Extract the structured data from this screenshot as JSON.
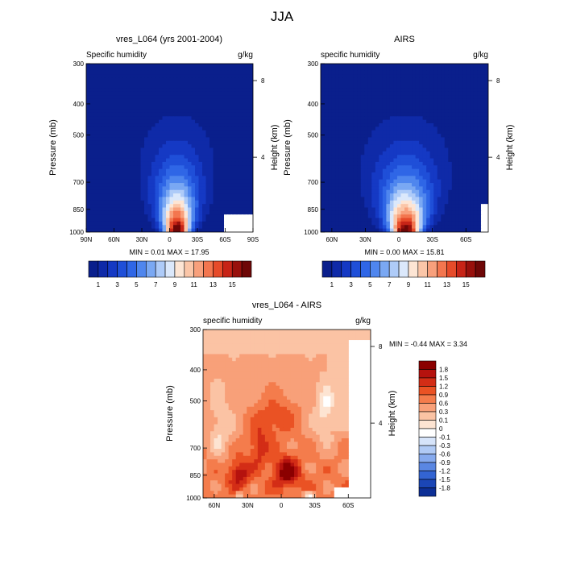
{
  "page_title": "JJA",
  "chart_data": [
    {
      "type": "contour",
      "title": "vres_L064 (yrs 2001-2004)",
      "left_label": "Specific humidity",
      "units": "g/kg",
      "ylabel": "Pressure (mb)",
      "ylabel_right": "Height (km)",
      "x_ticks": [
        "90N",
        "60N",
        "30N",
        "0",
        "30S",
        "60S",
        "90S"
      ],
      "y_ticks": [
        "300",
        "400",
        "500",
        "700",
        "850",
        "1000"
      ],
      "height_ticks": [
        "8",
        "4"
      ],
      "stats": "MIN =  0.01  MAX =  17.95",
      "min": 0.01,
      "max": 17.95,
      "levels": [
        1,
        2,
        3,
        4,
        5,
        6,
        7,
        8,
        9,
        10,
        11,
        12,
        13,
        14,
        15,
        16
      ],
      "colorbar_labels": [
        "1",
        "3",
        "5",
        "7",
        "9",
        "11",
        "13",
        "15"
      ]
    },
    {
      "type": "contour",
      "title": "AIRS",
      "left_label": "specific humidity",
      "units": "g/kg",
      "ylabel": "Pressure (mb)",
      "ylabel_right": "Height (km)",
      "x_ticks": [
        "60N",
        "30N",
        "0",
        "30S",
        "60S"
      ],
      "y_ticks": [
        "300",
        "400",
        "500",
        "700",
        "850",
        "1000"
      ],
      "height_ticks": [
        "8",
        "4"
      ],
      "stats": "MIN =  0.00  MAX =  15.81",
      "min": 0.0,
      "max": 15.81,
      "levels": [
        1,
        2,
        3,
        4,
        5,
        6,
        7,
        8,
        9,
        10,
        11,
        12,
        13,
        14,
        15,
        16
      ],
      "colorbar_labels": [
        "1",
        "3",
        "5",
        "7",
        "9",
        "11",
        "13",
        "15"
      ]
    },
    {
      "type": "contour",
      "title": "vres_L064 - AIRS",
      "left_label": "specific humidity",
      "units": "g/kg",
      "ylabel": "Pressure (mb)",
      "ylabel_right": "Height (km)",
      "x_ticks": [
        "60N",
        "30N",
        "0",
        "30S",
        "60S"
      ],
      "y_ticks": [
        "300",
        "400",
        "500",
        "700",
        "850",
        "1000"
      ],
      "height_ticks": [
        "8",
        "4"
      ],
      "stats": "MIN = -0.44  MAX =   3.34",
      "min": -0.44,
      "max": 3.34,
      "colorbar_labels": [
        "1.8",
        "1.5",
        "1.2",
        "0.9",
        "0.6",
        "0.3",
        "0.1",
        "0",
        "-0.1",
        "-0.3",
        "-0.6",
        "-0.9",
        "-1.2",
        "-1.5",
        "-1.8"
      ]
    }
  ],
  "colors": {
    "seq": [
      "#0a1f8c",
      "#0f2aa8",
      "#1539c4",
      "#1f4fd8",
      "#2f66e6",
      "#4f86ee",
      "#7aa8f3",
      "#aecbf8",
      "#dbe8fb",
      "#fde5d4",
      "#fbc6a8",
      "#f8a07c",
      "#f3764f",
      "#e64b2a",
      "#c72417",
      "#98100c",
      "#6e0707"
    ],
    "diff_pos": [
      "#8b0000",
      "#b5120e",
      "#d32d16",
      "#ea5224",
      "#f47c4c",
      "#f8a079",
      "#fbc3a4",
      "#fde4d2"
    ],
    "diff_neg": [
      "#ffffff",
      "#d6e4fa",
      "#b0caf5",
      "#86aaee",
      "#5a87e2",
      "#3364d2",
      "#1b46b6",
      "#0d2f96",
      "#061c6e"
    ],
    "nodata": "#ffffff"
  }
}
